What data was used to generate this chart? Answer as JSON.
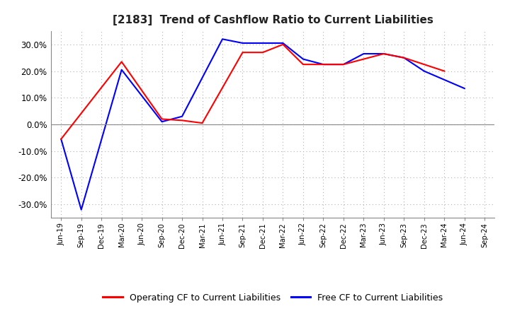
{
  "title": "[2183]  Trend of Cashflow Ratio to Current Liabilities",
  "x_labels": [
    "Jun-19",
    "Sep-19",
    "Dec-19",
    "Mar-20",
    "Jun-20",
    "Sep-20",
    "Dec-20",
    "Mar-21",
    "Jun-21",
    "Sep-21",
    "Dec-21",
    "Mar-22",
    "Jun-22",
    "Sep-22",
    "Dec-22",
    "Mar-23",
    "Jun-23",
    "Sep-23",
    "Dec-23",
    "Mar-24",
    "Jun-24",
    "Sep-24"
  ],
  "operating_color": "#ff0000",
  "free_color": "#0000ff",
  "background_color": "#ffffff",
  "ylim": [
    -35,
    35
  ],
  "yticks": [
    -30,
    -20,
    -10,
    0,
    10,
    20,
    30
  ],
  "grid_color": "#b0b0b0",
  "legend_labels": [
    "Operating CF to Current Liabilities",
    "Free CF to Current Liabilities"
  ],
  "operating_cf_x": [
    0,
    3,
    5,
    6,
    7,
    9,
    10,
    11,
    12,
    14,
    16,
    17,
    19
  ],
  "operating_cf_y": [
    -5.5,
    23.5,
    2.0,
    1.5,
    0.5,
    27.0,
    27.0,
    30.0,
    22.5,
    22.5,
    26.5,
    25.0,
    20.0
  ],
  "free_cf_x": [
    0,
    1,
    3,
    5,
    6,
    8,
    9,
    10,
    11,
    12,
    13,
    14,
    15,
    16,
    17,
    18,
    20
  ],
  "free_cf_y": [
    -5.5,
    -32.0,
    20.5,
    1.0,
    3.0,
    32.0,
    30.5,
    30.5,
    30.5,
    24.5,
    22.5,
    22.5,
    26.5,
    26.5,
    25.0,
    20.0,
    13.5
  ]
}
